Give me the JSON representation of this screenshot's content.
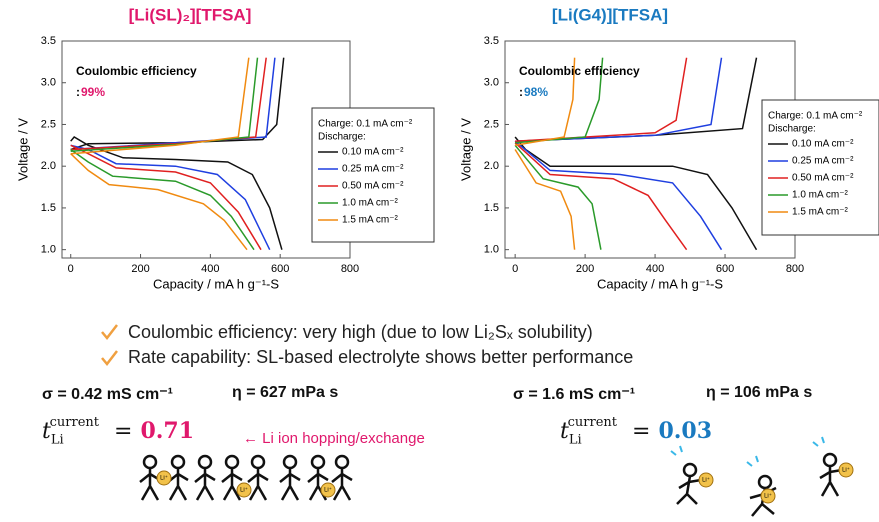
{
  "chart_data": [
    {
      "type": "line",
      "title": "[Li(SL)₂][TFSA]",
      "title_color": "#e0186c",
      "xlabel": "Capacity / mA h g⁻¹-S",
      "ylabel": "Voltage / V",
      "annotation": "Coulombic efficiency",
      "annotation_prefix": ":",
      "annotation_value": "99%",
      "legend_header": [
        "Charge: 0.1 mA cm⁻²",
        "Discharge:"
      ],
      "xlim": [
        -25,
        800
      ],
      "ylim": [
        0.9,
        3.5
      ],
      "xticks": [
        0,
        200,
        400,
        600,
        800
      ],
      "yticks": [
        {
          "value": 1,
          "label": "1.0"
        },
        1.5,
        {
          "value": 2,
          "label": "2.0"
        },
        2.5,
        {
          "value": 3,
          "label": "3.0"
        },
        3.5
      ],
      "series": [
        {
          "name": "0.10 mA cm⁻²",
          "color": "#111111",
          "x": [
            0,
            10,
            50,
            150,
            300,
            450,
            520,
            570,
            605,
            null,
            0,
            50,
            300,
            550,
            590,
            610
          ],
          "values": [
            2.3,
            2.35,
            2.25,
            2.1,
            2.08,
            2.05,
            1.9,
            1.5,
            1.0,
            null,
            2.2,
            2.27,
            2.28,
            2.32,
            2.5,
            3.3
          ]
        },
        {
          "name": "0.25 mA cm⁻²",
          "color": "#1f3fe0",
          "x": [
            0,
            50,
            130,
            300,
            420,
            500,
            570,
            null,
            0,
            300,
            560,
            585
          ],
          "values": [
            2.25,
            2.2,
            2.03,
            2.0,
            1.9,
            1.6,
            1.0,
            null,
            2.2,
            2.28,
            2.35,
            3.3
          ]
        },
        {
          "name": "0.50 mA cm⁻²",
          "color": "#e02020",
          "x": [
            0,
            50,
            130,
            300,
            400,
            480,
            545,
            null,
            0,
            300,
            530,
            560
          ],
          "values": [
            2.25,
            2.15,
            1.98,
            1.93,
            1.8,
            1.45,
            1.0,
            null,
            2.2,
            2.27,
            2.35,
            3.3
          ]
        },
        {
          "name": "1.0 mA cm⁻²",
          "color": "#2a9a2a",
          "x": [
            0,
            50,
            120,
            300,
            400,
            460,
            525,
            null,
            0,
            300,
            510,
            535
          ],
          "values": [
            2.2,
            2.05,
            1.88,
            1.82,
            1.65,
            1.4,
            1.0,
            null,
            2.18,
            2.26,
            2.35,
            3.3
          ]
        },
        {
          "name": "1.5 mA cm⁻²",
          "color": "#f08a10",
          "x": [
            0,
            50,
            110,
            250,
            380,
            440,
            505,
            null,
            0,
            300,
            480,
            510
          ],
          "values": [
            2.15,
            1.95,
            1.78,
            1.72,
            1.55,
            1.35,
            1.0,
            null,
            2.15,
            2.25,
            2.35,
            3.3
          ]
        }
      ]
    },
    {
      "type": "line",
      "title": "[Li(G4)][TFSA]",
      "title_color": "#1a7ac0",
      "xlabel": "Capacity / mA h g⁻¹-S",
      "ylabel": "Voltage / V",
      "annotation": "Coulombic efficiency",
      "annotation_prefix": ":",
      "annotation_value": "98%",
      "legend_header": [
        "Charge: 0.1 mA cm⁻²",
        "Discharge:"
      ],
      "xlim": [
        -29,
        800
      ],
      "ylim": [
        0.9,
        3.5
      ],
      "xticks": [
        0,
        200,
        400,
        600,
        800
      ],
      "yticks": [
        {
          "value": 1,
          "label": "1.0"
        },
        1.5,
        {
          "value": 2,
          "label": "2.0"
        },
        2.5,
        {
          "value": 3,
          "label": "3.0"
        },
        3.5
      ],
      "series": [
        {
          "name": "0.10 mA cm⁻²",
          "color": "#111111",
          "x": [
            0,
            30,
            100,
            450,
            550,
            620,
            690,
            null,
            0,
            400,
            650,
            690
          ],
          "values": [
            2.35,
            2.2,
            2.0,
            2.0,
            1.9,
            1.5,
            1.0,
            null,
            2.3,
            2.37,
            2.45,
            3.3
          ]
        },
        {
          "name": "0.25 mA cm⁻²",
          "color": "#1f3fe0",
          "x": [
            0,
            100,
            300,
            450,
            530,
            590,
            null,
            0,
            400,
            560,
            590
          ],
          "values": [
            2.3,
            1.95,
            1.9,
            1.8,
            1.4,
            1.0,
            null,
            2.3,
            2.37,
            2.5,
            3.3
          ]
        },
        {
          "name": "0.50 mA cm⁻²",
          "color": "#e02020",
          "x": [
            0,
            100,
            280,
            380,
            430,
            490,
            null,
            0,
            400,
            460,
            490
          ],
          "values": [
            2.28,
            1.9,
            1.85,
            1.65,
            1.35,
            1.0,
            null,
            2.3,
            2.4,
            2.55,
            3.3
          ]
        },
        {
          "name": "1.0 mA cm⁻²",
          "color": "#2a9a2a",
          "x": [
            0,
            80,
            180,
            220,
            245,
            null,
            0,
            200,
            240,
            250
          ],
          "values": [
            2.25,
            1.85,
            1.75,
            1.55,
            1.0,
            null,
            2.28,
            2.35,
            2.8,
            3.3
          ]
        },
        {
          "name": "1.5 mA cm⁻²",
          "color": "#f08a10",
          "x": [
            0,
            60,
            130,
            160,
            170,
            null,
            0,
            140,
            165,
            170
          ],
          "values": [
            2.2,
            1.8,
            1.7,
            1.4,
            1.0,
            null,
            2.25,
            2.35,
            2.8,
            3.3
          ]
        }
      ]
    }
  ],
  "bullets": [
    "Coulombic efficiency: very high (due to low Li₂Sₓ solubility)",
    "Rate capability: SL-based electrolyte shows better performance"
  ],
  "properties": [
    {
      "conductivity": "σ = 0.42 mS cm⁻¹",
      "viscosity": "η = 627 mPa s",
      "symbol": "t",
      "subscript": "Li",
      "superscript": "current",
      "equals": "=",
      "value": "0.71",
      "note": "← Li ion hopping/exchange"
    },
    {
      "conductivity": "σ = 1.6 mS cm⁻¹",
      "viscosity": "η = 106 mPa s",
      "symbol": "t",
      "subscript": "Li",
      "superscript": "current",
      "equals": "=",
      "value": "0.03"
    }
  ],
  "ion_label": "Li⁺"
}
